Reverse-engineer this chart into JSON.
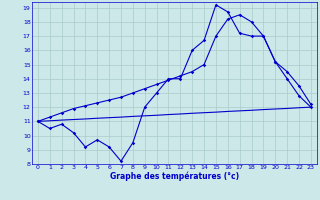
{
  "xlabel": "Graphe des températures (°c)",
  "xlim": [
    -0.5,
    23.5
  ],
  "ylim": [
    8,
    19.4
  ],
  "yticks": [
    8,
    9,
    10,
    11,
    12,
    13,
    14,
    15,
    16,
    17,
    18,
    19
  ],
  "xticks": [
    0,
    1,
    2,
    3,
    4,
    5,
    6,
    7,
    8,
    9,
    10,
    11,
    12,
    13,
    14,
    15,
    16,
    17,
    18,
    19,
    20,
    21,
    22,
    23
  ],
  "line_color": "#0000cc",
  "bg_color": "#cce8e8",
  "grid_color": "#aacccc",
  "series": [
    {
      "x": [
        0,
        1,
        2,
        3,
        4,
        5,
        6,
        7,
        8,
        9,
        10,
        11,
        12,
        13,
        14,
        15,
        16,
        17,
        18,
        19,
        20,
        21,
        22,
        23
      ],
      "y": [
        11,
        10.5,
        10.8,
        10.2,
        9.2,
        9.7,
        9.2,
        8.2,
        9.5,
        12,
        13.0,
        14.0,
        14.0,
        16.0,
        16.7,
        19.2,
        18.7,
        17.2,
        17.0,
        17.0,
        15.2,
        14.5,
        13.5,
        12.2
      ],
      "marker": true
    },
    {
      "x": [
        0,
        1,
        2,
        3,
        4,
        5,
        6,
        7,
        8,
        9,
        10,
        11,
        12,
        13,
        14,
        15,
        16,
        17,
        18,
        19,
        20,
        21,
        22,
        23
      ],
      "y": [
        11,
        11.04,
        11.09,
        11.13,
        11.17,
        11.22,
        11.26,
        11.3,
        11.35,
        11.39,
        11.43,
        11.48,
        11.52,
        11.57,
        11.61,
        11.65,
        11.7,
        11.74,
        11.78,
        11.83,
        11.87,
        11.91,
        11.96,
        12.0
      ],
      "marker": false
    },
    {
      "x": [
        0,
        1,
        2,
        3,
        4,
        5,
        6,
        7,
        8,
        9,
        10,
        11,
        12,
        13,
        14,
        15,
        16,
        17,
        18,
        19,
        20,
        21,
        22,
        23
      ],
      "y": [
        11,
        11.3,
        11.6,
        11.9,
        12.1,
        12.3,
        12.5,
        12.7,
        13.0,
        13.3,
        13.6,
        13.9,
        14.2,
        14.5,
        15.0,
        17.0,
        18.2,
        18.5,
        18.0,
        17.0,
        15.2,
        14.0,
        12.8,
        12.0
      ],
      "marker": true
    }
  ]
}
